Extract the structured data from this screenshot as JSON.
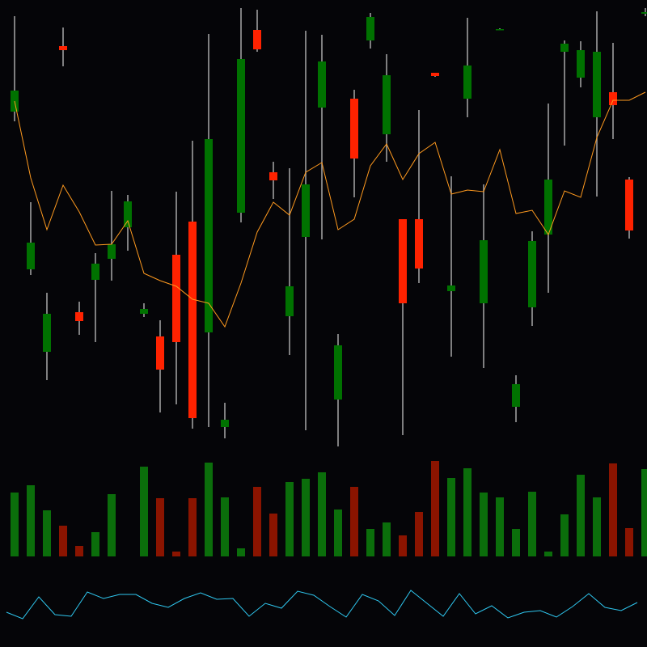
{
  "chart_data": [
    {
      "type": "candlestick",
      "ylim": [
        0,
        600
      ],
      "up_color": "#007200",
      "down_color": "#ff2200",
      "wick_color": "#a8a8a8",
      "open": [
        462,
        267,
        165,
        543,
        214,
        254,
        280,
        319,
        212,
        184,
        285,
        326,
        189,
        72,
        337,
        563,
        387,
        209,
        307,
        467,
        106,
        478,
        550,
        434,
        329,
        329,
        510,
        240,
        478,
        225,
        564,
        97,
        220,
        310,
        536,
        504,
        455,
        486,
        378,
        583
      ],
      "high": [
        580,
        350,
        238,
        566,
        227,
        287,
        364,
        359,
        225,
        204,
        363,
        426,
        558,
        102,
        590,
        588,
        400,
        392,
        562,
        557,
        187,
        489,
        584,
        533,
        329,
        464,
        510,
        382,
        578,
        372,
        565,
        136,
        314,
        472,
        550,
        549,
        586,
        547,
        381,
        590
      ],
      "low": [
        450,
        260,
        130,
        518,
        186,
        177,
        253,
        290,
        208,
        90,
        100,
        70,
        72,
        58,
        325,
        536,
        354,
        161,
        68,
        304,
        48,
        356,
        540,
        400,
        62,
        250,
        505,
        159,
        455,
        145,
        563,
        78,
        197,
        238,
        420,
        492,
        357,
        428,
        305,
        580
      ],
      "close": [
        488,
        300,
        212,
        538,
        203,
        274,
        298,
        351,
        218,
        143,
        177,
        83,
        428,
        81,
        527,
        539,
        377,
        246,
        372,
        524,
        173,
        404,
        579,
        507,
        225,
        268,
        506,
        247,
        519,
        303,
        564,
        125,
        302,
        378,
        546,
        538,
        536,
        470,
        315,
        585
      ],
      "overlay": {
        "color": "#ff9a1f",
        "values": [
          475,
          380,
          316,
          371,
          338,
          297,
          298,
          327,
          262,
          253,
          246,
          230,
          225,
          196,
          250,
          313,
          350,
          334,
          387,
          399,
          316,
          329,
          395,
          422,
          378,
          410,
          424,
          360,
          365,
          363,
          415,
          336,
          340,
          310,
          364,
          356,
          430,
          476,
          476,
          486
        ]
      }
    },
    {
      "type": "bar",
      "ylim": [
        0,
        120
      ],
      "up_color": "#0b6e0b",
      "down_color": "#8b1400",
      "values": [
        79,
        88,
        57,
        38,
        13,
        30,
        77,
        0,
        111,
        72,
        6,
        72,
        116,
        73,
        10,
        86,
        53,
        92,
        96,
        104,
        58,
        86,
        34,
        42,
        26,
        55,
        118,
        97,
        109,
        79,
        73,
        34,
        80,
        6,
        52,
        101,
        73,
        115,
        35,
        108
      ]
    },
    {
      "type": "line",
      "ylim": [
        0,
        100
      ],
      "color": "#2fc8f0",
      "values": [
        43,
        35,
        62,
        40,
        38,
        68,
        60,
        65,
        65,
        54,
        49,
        60,
        67,
        59,
        60,
        38,
        54,
        48,
        69,
        64,
        50,
        37,
        65,
        57,
        39,
        70,
        54,
        38,
        66,
        41,
        51,
        36,
        43,
        45,
        37,
        50,
        66,
        49,
        45,
        55
      ]
    }
  ]
}
